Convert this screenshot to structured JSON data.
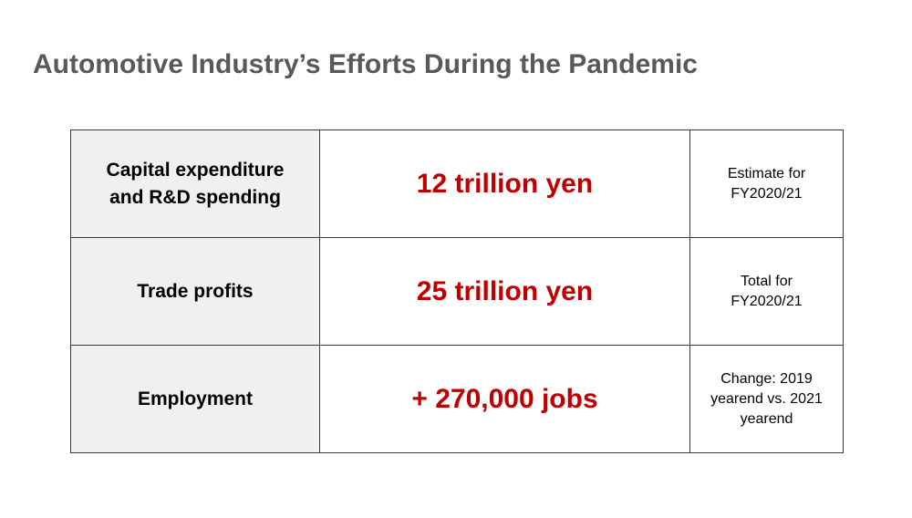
{
  "slide": {
    "title": "Automotive Industry’s Efforts During the Pandemic"
  },
  "colors": {
    "title": "#595959",
    "value_accent": "#c00000",
    "label_background": "#f0f0f0",
    "border": "#3a3a3a"
  },
  "table": {
    "rows": [
      {
        "label_lines": [
          "Capital expenditure",
          "and R&D spending"
        ],
        "value": "12 trillion yen",
        "note_lines": [
          "Estimate for",
          "FY2020/21"
        ]
      },
      {
        "label_lines": [
          "Trade profits"
        ],
        "value": "25 trillion yen",
        "note_lines": [
          "Total for",
          "FY2020/21"
        ]
      },
      {
        "label_lines": [
          "Employment"
        ],
        "value": "+ 270,000 jobs",
        "note_lines": [
          "Change: 2019",
          "yearend vs. 2021",
          "yearend"
        ]
      }
    ]
  }
}
